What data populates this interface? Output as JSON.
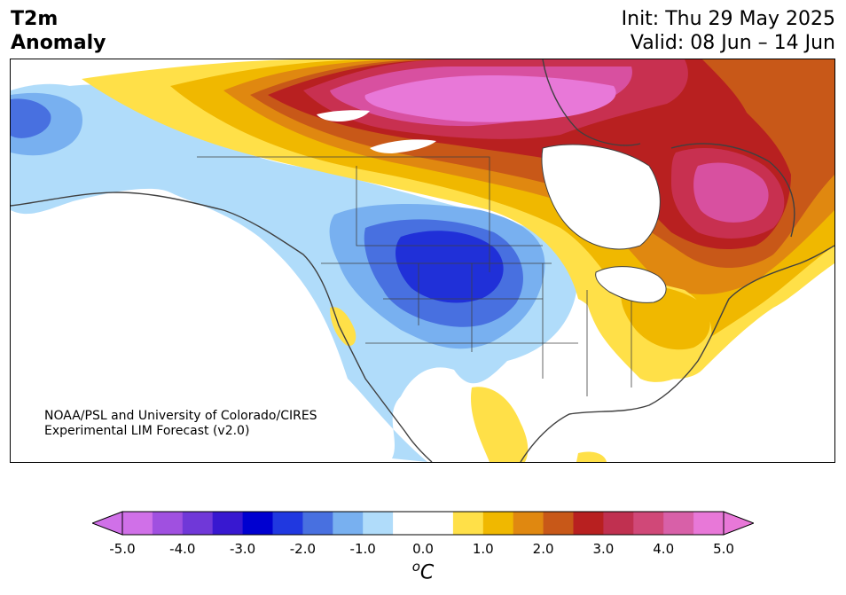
{
  "title": {
    "line1": "T2m",
    "line2": "Anomaly"
  },
  "init": "Init: Thu 29 May 2025",
  "valid": "Valid: 08 Jun – 14 Jun",
  "credit": {
    "line1": "NOAA/PSL and University of Colorado/CIRES",
    "line2": "Experimental LIM Forecast (v2.0)"
  },
  "colorbar": {
    "units_base": "C",
    "units_sup": "o",
    "ticks": [
      "-5.0",
      "-4.0",
      "-3.0",
      "-2.0",
      "-1.0",
      "0.0",
      "1.0",
      "2.0",
      "3.0",
      "4.0",
      "5.0"
    ],
    "tick_values": [
      -5,
      -4,
      -3,
      -2,
      -1,
      0,
      1,
      2,
      3,
      4,
      5
    ],
    "range": [
      -5.0,
      5.0
    ],
    "step": 0.5,
    "under_color": "#d070e8",
    "over_color": "#e878d8",
    "colors": [
      "#d070e8",
      "#a050e0",
      "#7038d8",
      "#3818d0",
      "#0000d0",
      "#2038e0",
      "#4870e0",
      "#78b0f0",
      "#b0dcfa",
      "#ffffff",
      "#ffffff",
      "#ffe048",
      "#f0b800",
      "#e08810",
      "#c85818",
      "#b82020",
      "#c03050",
      "#d04878",
      "#d860a8",
      "#e878d8"
    ]
  },
  "map": {
    "region": "North America",
    "colors": {
      "land": "#ffffff",
      "coast": "#404040",
      "cold_extreme": "#2030d8",
      "cold_strong": "#4870e0",
      "cold_moderate": "#78b0f0",
      "cool": "#b0dcfa",
      "warm": "#ffe048",
      "warmer": "#f0b800",
      "hot": "#e08810",
      "hotter": "#c85818",
      "very_hot": "#b82020",
      "crimson": "#c83050",
      "pink": "#d850a0",
      "magenta": "#e878d8"
    }
  }
}
